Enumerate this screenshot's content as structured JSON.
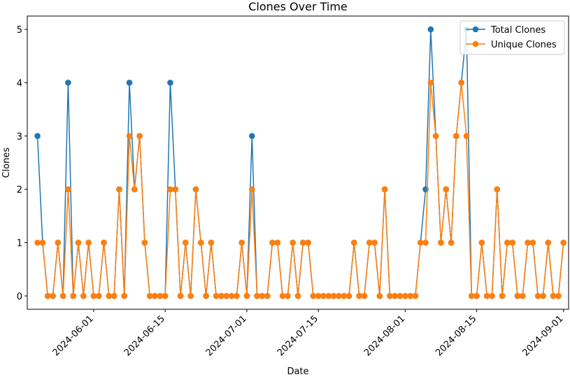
{
  "chart_data": {
    "type": "line",
    "title": "Clones Over Time",
    "xlabel": "Date",
    "ylabel": "Clones",
    "x_start": "2024-05-21",
    "x_end": "2024-09-01",
    "xlim": [
      "2024-05-19",
      "2024-09-02"
    ],
    "ylim": [
      -0.25,
      5.25
    ],
    "x_ticks": [
      "2024-06-01",
      "2024-06-15",
      "2024-07-01",
      "2024-07-15",
      "2024-08-01",
      "2024-08-15",
      "2024-09-01"
    ],
    "y_ticks": [
      "0",
      "1",
      "2",
      "3",
      "4",
      "5"
    ],
    "grid": false,
    "legend_position": "upper right",
    "series": [
      {
        "name": "Total Clones",
        "color": "#1f77b4",
        "values": [
          3,
          1,
          0,
          0,
          1,
          0,
          4,
          0,
          1,
          0,
          1,
          0,
          0,
          1,
          0,
          0,
          2,
          0,
          4,
          2,
          3,
          1,
          0,
          0,
          0,
          0,
          4,
          2,
          0,
          1,
          0,
          2,
          1,
          0,
          1,
          0,
          0,
          0,
          0,
          0,
          1,
          0,
          3,
          0,
          0,
          0,
          1,
          1,
          0,
          0,
          1,
          0,
          1,
          1,
          0,
          0,
          0,
          0,
          0,
          0,
          0,
          0,
          1,
          0,
          0,
          1,
          1,
          0,
          2,
          0,
          0,
          0,
          0,
          0,
          0,
          1,
          2,
          5,
          3,
          1,
          2,
          1,
          3,
          4,
          5,
          0,
          0,
          1,
          0,
          0,
          2,
          0,
          1,
          1,
          0,
          0,
          1,
          1,
          0,
          0,
          1,
          0,
          0,
          1
        ]
      },
      {
        "name": "Unique Clones",
        "color": "#ff7f0e",
        "values": [
          1,
          1,
          0,
          0,
          1,
          0,
          2,
          0,
          1,
          0,
          1,
          0,
          0,
          1,
          0,
          0,
          2,
          0,
          3,
          2,
          3,
          1,
          0,
          0,
          0,
          0,
          2,
          2,
          0,
          1,
          0,
          2,
          1,
          0,
          1,
          0,
          0,
          0,
          0,
          0,
          1,
          0,
          2,
          0,
          0,
          0,
          1,
          1,
          0,
          0,
          1,
          0,
          1,
          1,
          0,
          0,
          0,
          0,
          0,
          0,
          0,
          0,
          1,
          0,
          0,
          1,
          1,
          0,
          2,
          0,
          0,
          0,
          0,
          0,
          0,
          1,
          1,
          4,
          3,
          1,
          2,
          1,
          3,
          4,
          3,
          0,
          0,
          1,
          0,
          0,
          2,
          0,
          1,
          1,
          0,
          0,
          1,
          1,
          0,
          0,
          1,
          0,
          0,
          1
        ]
      }
    ]
  }
}
